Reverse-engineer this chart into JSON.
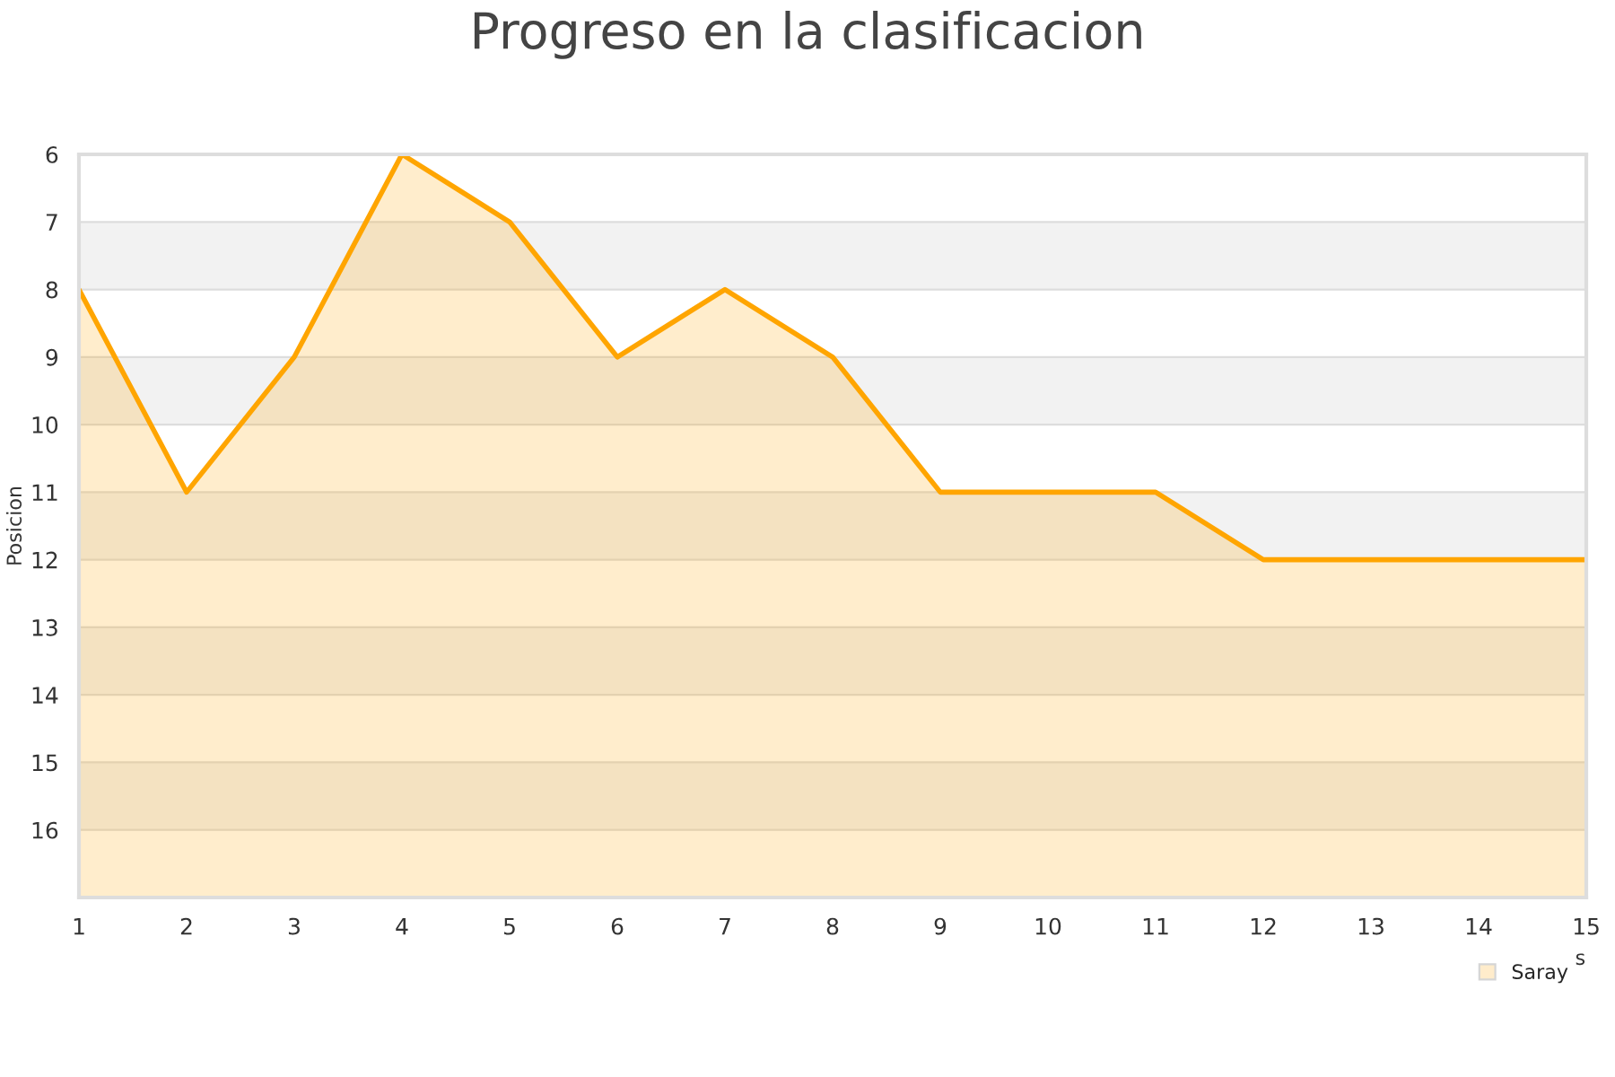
{
  "chart_data": {
    "type": "area",
    "title": "Progreso en la clasificacion",
    "ylabel": "Posicion",
    "xlabel": "s",
    "x": [
      1,
      2,
      3,
      4,
      5,
      6,
      7,
      8,
      9,
      10,
      11,
      12,
      13,
      14,
      15
    ],
    "series": [
      {
        "name": "Saray",
        "color": "#ffa500",
        "values": [
          8,
          11,
          9,
          6,
          7,
          9,
          8,
          9,
          11,
          11,
          11,
          12,
          12,
          12,
          12
        ]
      }
    ],
    "xlim": [
      1,
      15
    ],
    "xticks": [
      1,
      2,
      3,
      4,
      5,
      6,
      7,
      8,
      9,
      10,
      11,
      12,
      13,
      14,
      15
    ],
    "ylim": [
      17,
      6
    ],
    "yticks": [
      6,
      7,
      8,
      9,
      10,
      11,
      12,
      13,
      14,
      15,
      16
    ],
    "bands": [
      {
        "axis": "y",
        "from": 7,
        "to": 8,
        "color": "#f2f2f2"
      },
      {
        "axis": "y",
        "from": 9,
        "to": 10,
        "color": "#f2f2f2"
      },
      {
        "axis": "y",
        "from": 11,
        "to": 12,
        "color": "#f2f2f2"
      },
      {
        "axis": "y",
        "from": 13,
        "to": 14,
        "color": "#f2f2f2"
      },
      {
        "axis": "y",
        "from": 15,
        "to": 16,
        "color": "#f2f2f2"
      }
    ],
    "grid": "y",
    "legend": "bottom right",
    "marker": "none",
    "line_style": "solid"
  }
}
